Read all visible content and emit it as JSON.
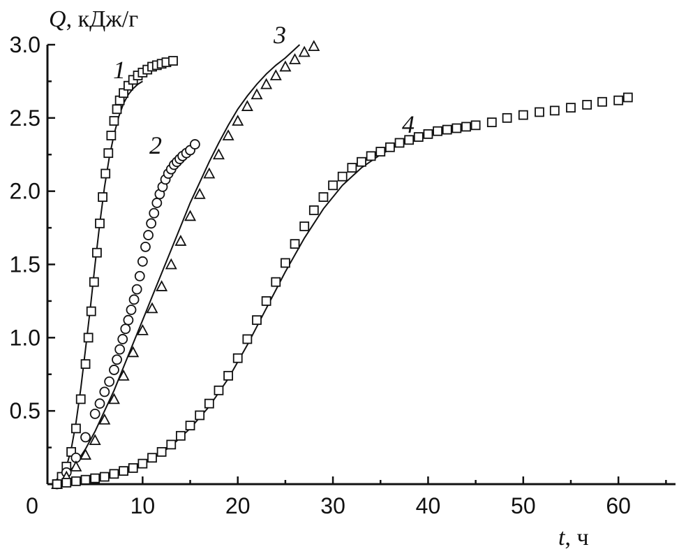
{
  "chart_data": {
    "type": "scatter",
    "xlabel_var": "t",
    "xlabel_unit": ", ч",
    "ylabel_var": "Q",
    "ylabel_unit": ", кДж/г",
    "xlim": [
      0,
      66
    ],
    "ylim": [
      0,
      3.0
    ],
    "x_ticks": [
      0,
      10,
      20,
      30,
      40,
      50,
      60
    ],
    "x_tick_labels": [
      "0",
      "10",
      "20",
      "30",
      "40",
      "50",
      "60"
    ],
    "y_ticks": [
      0.5,
      1.0,
      1.5,
      2.0,
      2.5,
      3.0
    ],
    "y_tick_labels": [
      "0.5",
      "1.0",
      "1.5",
      "2.0",
      "2.5",
      "3.0"
    ],
    "grid": false,
    "series": [
      {
        "name": "1",
        "marker": "square",
        "x": [
          1.0,
          1.5,
          2.0,
          2.5,
          3.0,
          3.5,
          4.0,
          4.3,
          4.6,
          4.9,
          5.2,
          5.5,
          5.8,
          6.1,
          6.4,
          6.7,
          7.0,
          7.3,
          7.6,
          8.0,
          8.5,
          9.0,
          9.5,
          10.0,
          10.5,
          11.0,
          11.5,
          12.0,
          12.5,
          13.2
        ],
        "y": [
          0.0,
          0.05,
          0.12,
          0.22,
          0.38,
          0.58,
          0.82,
          1.0,
          1.18,
          1.38,
          1.58,
          1.78,
          1.96,
          2.12,
          2.26,
          2.38,
          2.48,
          2.56,
          2.62,
          2.67,
          2.72,
          2.76,
          2.79,
          2.81,
          2.83,
          2.85,
          2.86,
          2.87,
          2.88,
          2.89
        ],
        "fit_x": [
          1.0,
          1.5,
          2.0,
          2.5,
          3.0,
          3.5,
          4.0,
          4.5,
          5.0,
          5.5,
          6.0,
          6.5,
          7.0,
          7.5,
          8.0,
          8.5,
          9.0,
          9.5,
          10.0
        ],
        "fit_y": [
          0.0,
          0.05,
          0.12,
          0.24,
          0.42,
          0.65,
          0.92,
          1.2,
          1.5,
          1.78,
          2.03,
          2.23,
          2.39,
          2.51,
          2.6,
          2.66,
          2.7,
          2.73,
          2.75
        ]
      },
      {
        "name": "2",
        "marker": "circle",
        "x": [
          1.0,
          2.0,
          3.0,
          4.0,
          5.0,
          5.5,
          6.0,
          6.5,
          7.0,
          7.3,
          7.6,
          7.9,
          8.2,
          8.5,
          8.8,
          9.1,
          9.4,
          9.7,
          10.0,
          10.3,
          10.6,
          10.9,
          11.2,
          11.5,
          11.8,
          12.1,
          12.4,
          12.7,
          13.0,
          13.3,
          13.6,
          13.9,
          14.2,
          14.6,
          15.0,
          15.5
        ],
        "y": [
          0.0,
          0.08,
          0.18,
          0.32,
          0.48,
          0.55,
          0.63,
          0.7,
          0.78,
          0.85,
          0.92,
          0.99,
          1.06,
          1.12,
          1.19,
          1.26,
          1.33,
          1.42,
          1.52,
          1.62,
          1.7,
          1.78,
          1.85,
          1.92,
          1.98,
          2.03,
          2.08,
          2.12,
          2.15,
          2.18,
          2.2,
          2.22,
          2.24,
          2.26,
          2.28,
          2.32
        ],
        "fit_x": [],
        "fit_y": []
      },
      {
        "name": "3",
        "marker": "triangle",
        "x": [
          1.0,
          2.0,
          3.0,
          4.0,
          5.0,
          6.0,
          7.0,
          8.0,
          9.0,
          10.0,
          11.0,
          12.0,
          13.0,
          14.0,
          15.0,
          16.0,
          17.0,
          18.0,
          19.0,
          20.0,
          21.0,
          22.0,
          23.0,
          24.0,
          25.0,
          26.0,
          27.0,
          28.0
        ],
        "y": [
          0.0,
          0.05,
          0.12,
          0.2,
          0.3,
          0.44,
          0.58,
          0.74,
          0.9,
          1.05,
          1.2,
          1.35,
          1.5,
          1.66,
          1.83,
          1.98,
          2.12,
          2.25,
          2.38,
          2.48,
          2.58,
          2.66,
          2.73,
          2.79,
          2.85,
          2.9,
          2.95,
          2.99
        ],
        "fit_x": [
          1.0,
          2.0,
          3.0,
          4.0,
          5.0,
          6.0,
          7.0,
          8.0,
          9.0,
          10.0,
          11.0,
          12.0,
          13.0,
          14.0,
          15.0,
          16.0,
          17.0,
          18.0,
          19.0,
          20.0,
          21.0,
          22.0,
          23.0,
          24.0,
          25.0,
          26.5
        ],
        "fit_y": [
          0.0,
          0.06,
          0.14,
          0.24,
          0.36,
          0.5,
          0.64,
          0.8,
          0.96,
          1.12,
          1.28,
          1.44,
          1.6,
          1.76,
          1.92,
          2.06,
          2.2,
          2.33,
          2.45,
          2.56,
          2.65,
          2.73,
          2.8,
          2.86,
          2.91,
          3.0
        ]
      },
      {
        "name": "4",
        "marker": "square",
        "x": [
          1,
          2,
          3,
          4,
          5,
          6,
          7,
          8,
          9,
          10,
          11,
          12,
          13,
          14,
          15,
          16,
          17,
          18,
          19,
          20,
          21,
          22,
          23,
          24,
          25,
          26,
          27,
          28,
          29,
          30,
          31,
          32,
          33,
          34,
          35,
          36,
          37,
          38,
          39,
          40,
          41,
          42,
          43,
          44,
          45,
          46.7,
          48.3,
          50,
          51.7,
          53.3,
          55,
          56.7,
          58.3,
          60,
          61
        ],
        "y": [
          0.0,
          0.01,
          0.02,
          0.03,
          0.04,
          0.05,
          0.07,
          0.09,
          0.11,
          0.14,
          0.18,
          0.22,
          0.27,
          0.33,
          0.4,
          0.47,
          0.55,
          0.64,
          0.74,
          0.86,
          0.99,
          1.12,
          1.25,
          1.38,
          1.51,
          1.64,
          1.76,
          1.87,
          1.96,
          2.04,
          2.1,
          2.16,
          2.2,
          2.24,
          2.27,
          2.3,
          2.33,
          2.35,
          2.37,
          2.39,
          2.41,
          2.42,
          2.43,
          2.44,
          2.45,
          2.47,
          2.5,
          2.52,
          2.54,
          2.55,
          2.57,
          2.59,
          2.61,
          2.62,
          2.64
        ],
        "fit_x": [
          1,
          3,
          5,
          7,
          9,
          11,
          13,
          15,
          17,
          19,
          21,
          23,
          25,
          27,
          29,
          31,
          33,
          35,
          37,
          39,
          41,
          43,
          45
        ],
        "fit_y": [
          0.0,
          0.02,
          0.04,
          0.07,
          0.11,
          0.17,
          0.26,
          0.38,
          0.53,
          0.72,
          0.95,
          1.2,
          1.45,
          1.68,
          1.88,
          2.04,
          2.16,
          2.25,
          2.32,
          2.37,
          2.41,
          2.44,
          2.46
        ]
      }
    ]
  }
}
